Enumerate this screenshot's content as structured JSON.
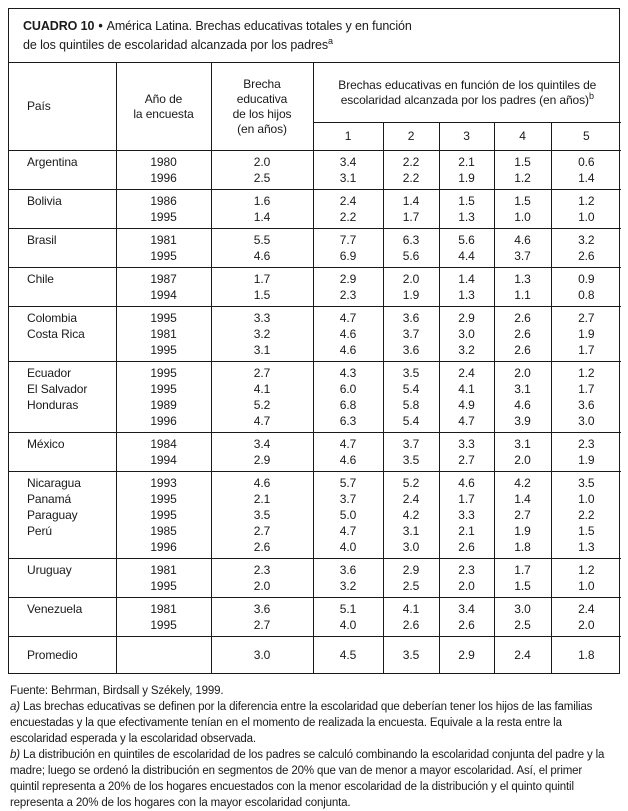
{
  "colors": {
    "ink": "#1a1a1a",
    "paper": "#ffffff"
  },
  "title": {
    "label": "CUADRO 10",
    "bullet": "•",
    "line1": "América Latina. Brechas educativas totales y en función",
    "line2": "de los quintiles de escolaridad alcanzada por los padres",
    "sup": "a"
  },
  "header": {
    "country": "País",
    "year": "Año de\nla encuesta",
    "gap": "Brecha\neducativa\nde los hijos\n(en años)",
    "quintiles_title": "Brechas educativas en función de los quintiles de\nescolaridad alcanzada por los padres (en años)",
    "quintiles_sup": "b",
    "quintile_cols": [
      "1",
      "2",
      "3",
      "4",
      "5"
    ]
  },
  "table": {
    "groups": [
      {
        "rows": [
          {
            "country": "Argentina",
            "year": "1980",
            "gap": "2.0",
            "quintiles": [
              "3.4",
              "2.2",
              "2.1",
              "1.5",
              "0.6"
            ]
          },
          {
            "country": "",
            "year": "1996",
            "gap": "2.5",
            "quintiles": [
              "3.1",
              "2.2",
              "1.9",
              "1.2",
              "1.4"
            ]
          }
        ]
      },
      {
        "rows": [
          {
            "country": "Bolivia",
            "year": "1986",
            "gap": "1.6",
            "quintiles": [
              "2.4",
              "1.4",
              "1.5",
              "1.5",
              "1.2"
            ]
          },
          {
            "country": "",
            "year": "1995",
            "gap": "1.4",
            "quintiles": [
              "2.2",
              "1.7",
              "1.3",
              "1.0",
              "1.0"
            ]
          }
        ]
      },
      {
        "rows": [
          {
            "country": "Brasil",
            "year": "1981",
            "gap": "5.5",
            "quintiles": [
              "7.7",
              "6.3",
              "5.6",
              "4.6",
              "3.2"
            ]
          },
          {
            "country": "",
            "year": "1995",
            "gap": "4.6",
            "quintiles": [
              "6.9",
              "5.6",
              "4.4",
              "3.7",
              "2.6"
            ]
          }
        ]
      },
      {
        "rows": [
          {
            "country": "Chile",
            "year": "1987",
            "gap": "1.7",
            "quintiles": [
              "2.9",
              "2.0",
              "1.4",
              "1.3",
              "0.9"
            ]
          },
          {
            "country": "",
            "year": "1994",
            "gap": "1.5",
            "quintiles": [
              "2.3",
              "1.9",
              "1.3",
              "1.1",
              "0.8"
            ]
          }
        ]
      },
      {
        "rows": [
          {
            "country": "Colombia",
            "year": "1995",
            "gap": "3.3",
            "quintiles": [
              "4.7",
              "3.6",
              "2.9",
              "2.6",
              "2.7"
            ]
          },
          {
            "country": "Costa Rica",
            "year": "1981",
            "gap": "3.2",
            "quintiles": [
              "4.6",
              "3.7",
              "3.0",
              "2.6",
              "1.9"
            ]
          },
          {
            "country": "",
            "year": "1995",
            "gap": "3.1",
            "quintiles": [
              "4.6",
              "3.6",
              "3.2",
              "2.6",
              "1.7"
            ]
          }
        ]
      },
      {
        "rows": [
          {
            "country": "Ecuador",
            "year": "1995",
            "gap": "2.7",
            "quintiles": [
              "4.3",
              "3.5",
              "2.4",
              "2.0",
              "1.2"
            ]
          },
          {
            "country": "El Salvador",
            "year": "1995",
            "gap": "4.1",
            "quintiles": [
              "6.0",
              "5.4",
              "4.1",
              "3.1",
              "1.7"
            ]
          },
          {
            "country": "Honduras",
            "year": "1989",
            "gap": "5.2",
            "quintiles": [
              "6.8",
              "5.8",
              "4.9",
              "4.6",
              "3.6"
            ]
          },
          {
            "country": "",
            "year": "1996",
            "gap": "4.7",
            "quintiles": [
              "6.3",
              "5.4",
              "4.7",
              "3.9",
              "3.0"
            ]
          }
        ]
      },
      {
        "rows": [
          {
            "country": "México",
            "year": "1984",
            "gap": "3.4",
            "quintiles": [
              "4.7",
              "3.7",
              "3.3",
              "3.1",
              "2.3"
            ]
          },
          {
            "country": "",
            "year": "1994",
            "gap": "2.9",
            "quintiles": [
              "4.6",
              "3.5",
              "2.7",
              "2.0",
              "1.9"
            ]
          }
        ]
      },
      {
        "rows": [
          {
            "country": "Nicaragua",
            "year": "1993",
            "gap": "4.6",
            "quintiles": [
              "5.7",
              "5.2",
              "4.6",
              "4.2",
              "3.5"
            ]
          },
          {
            "country": "Panamá",
            "year": "1995",
            "gap": "2.1",
            "quintiles": [
              "3.7",
              "2.4",
              "1.7",
              "1.4",
              "1.0"
            ]
          },
          {
            "country": "Paraguay",
            "year": "1995",
            "gap": "3.5",
            "quintiles": [
              "5.0",
              "4.2",
              "3.3",
              "2.7",
              "2.2"
            ]
          },
          {
            "country": "Perú",
            "year": "1985",
            "gap": "2.7",
            "quintiles": [
              "4.7",
              "3.1",
              "2.1",
              "1.9",
              "1.5"
            ]
          },
          {
            "country": "",
            "year": "1996",
            "gap": "2.6",
            "quintiles": [
              "4.0",
              "3.0",
              "2.6",
              "1.8",
              "1.3"
            ]
          }
        ]
      },
      {
        "rows": [
          {
            "country": "Uruguay",
            "year": "1981",
            "gap": "2.3",
            "quintiles": [
              "3.6",
              "2.9",
              "2.3",
              "1.7",
              "1.2"
            ]
          },
          {
            "country": "",
            "year": "1995",
            "gap": "2.0",
            "quintiles": [
              "3.2",
              "2.5",
              "2.0",
              "1.5",
              "1.0"
            ]
          }
        ]
      },
      {
        "rows": [
          {
            "country": "Venezuela",
            "year": "1981",
            "gap": "3.6",
            "quintiles": [
              "5.1",
              "4.1",
              "3.4",
              "3.0",
              "2.4"
            ]
          },
          {
            "country": "",
            "year": "1995",
            "gap": "2.7",
            "quintiles": [
              "4.0",
              "2.6",
              "2.6",
              "2.5",
              "2.0"
            ]
          }
        ]
      }
    ],
    "summary_row": {
      "country": "Promedio",
      "year": "",
      "gap": "3.0",
      "quintiles": [
        "4.5",
        "3.5",
        "2.9",
        "2.4",
        "1.8"
      ]
    }
  },
  "footnotes": {
    "source": "Fuente: Behrman, Birdsall y Székely, 1999.",
    "a_label": "a)",
    "a_text": " Las brechas educativas se definen por la diferencia entre la escolaridad que deberían tener los hijos de las familias encuestadas y la que efectivamente tenían en el momento de realizada la encuesta. Equivale a la resta entre la escolaridad esperada y la escolaridad observada.",
    "b_label": "b)",
    "b_text": " La distribución en quintiles de escolaridad de los padres se calculó combinando la escolaridad conjunta del padre y la madre; luego se ordenó la distribución en segmentos de 20% que van de menor a mayor escolaridad. Así, el primer quintil representa a 20% de los hogares encuestados con la menor escolaridad de la distribución y el quinto quintil representa a 20% de los hogares con la mayor escolaridad conjunta."
  }
}
